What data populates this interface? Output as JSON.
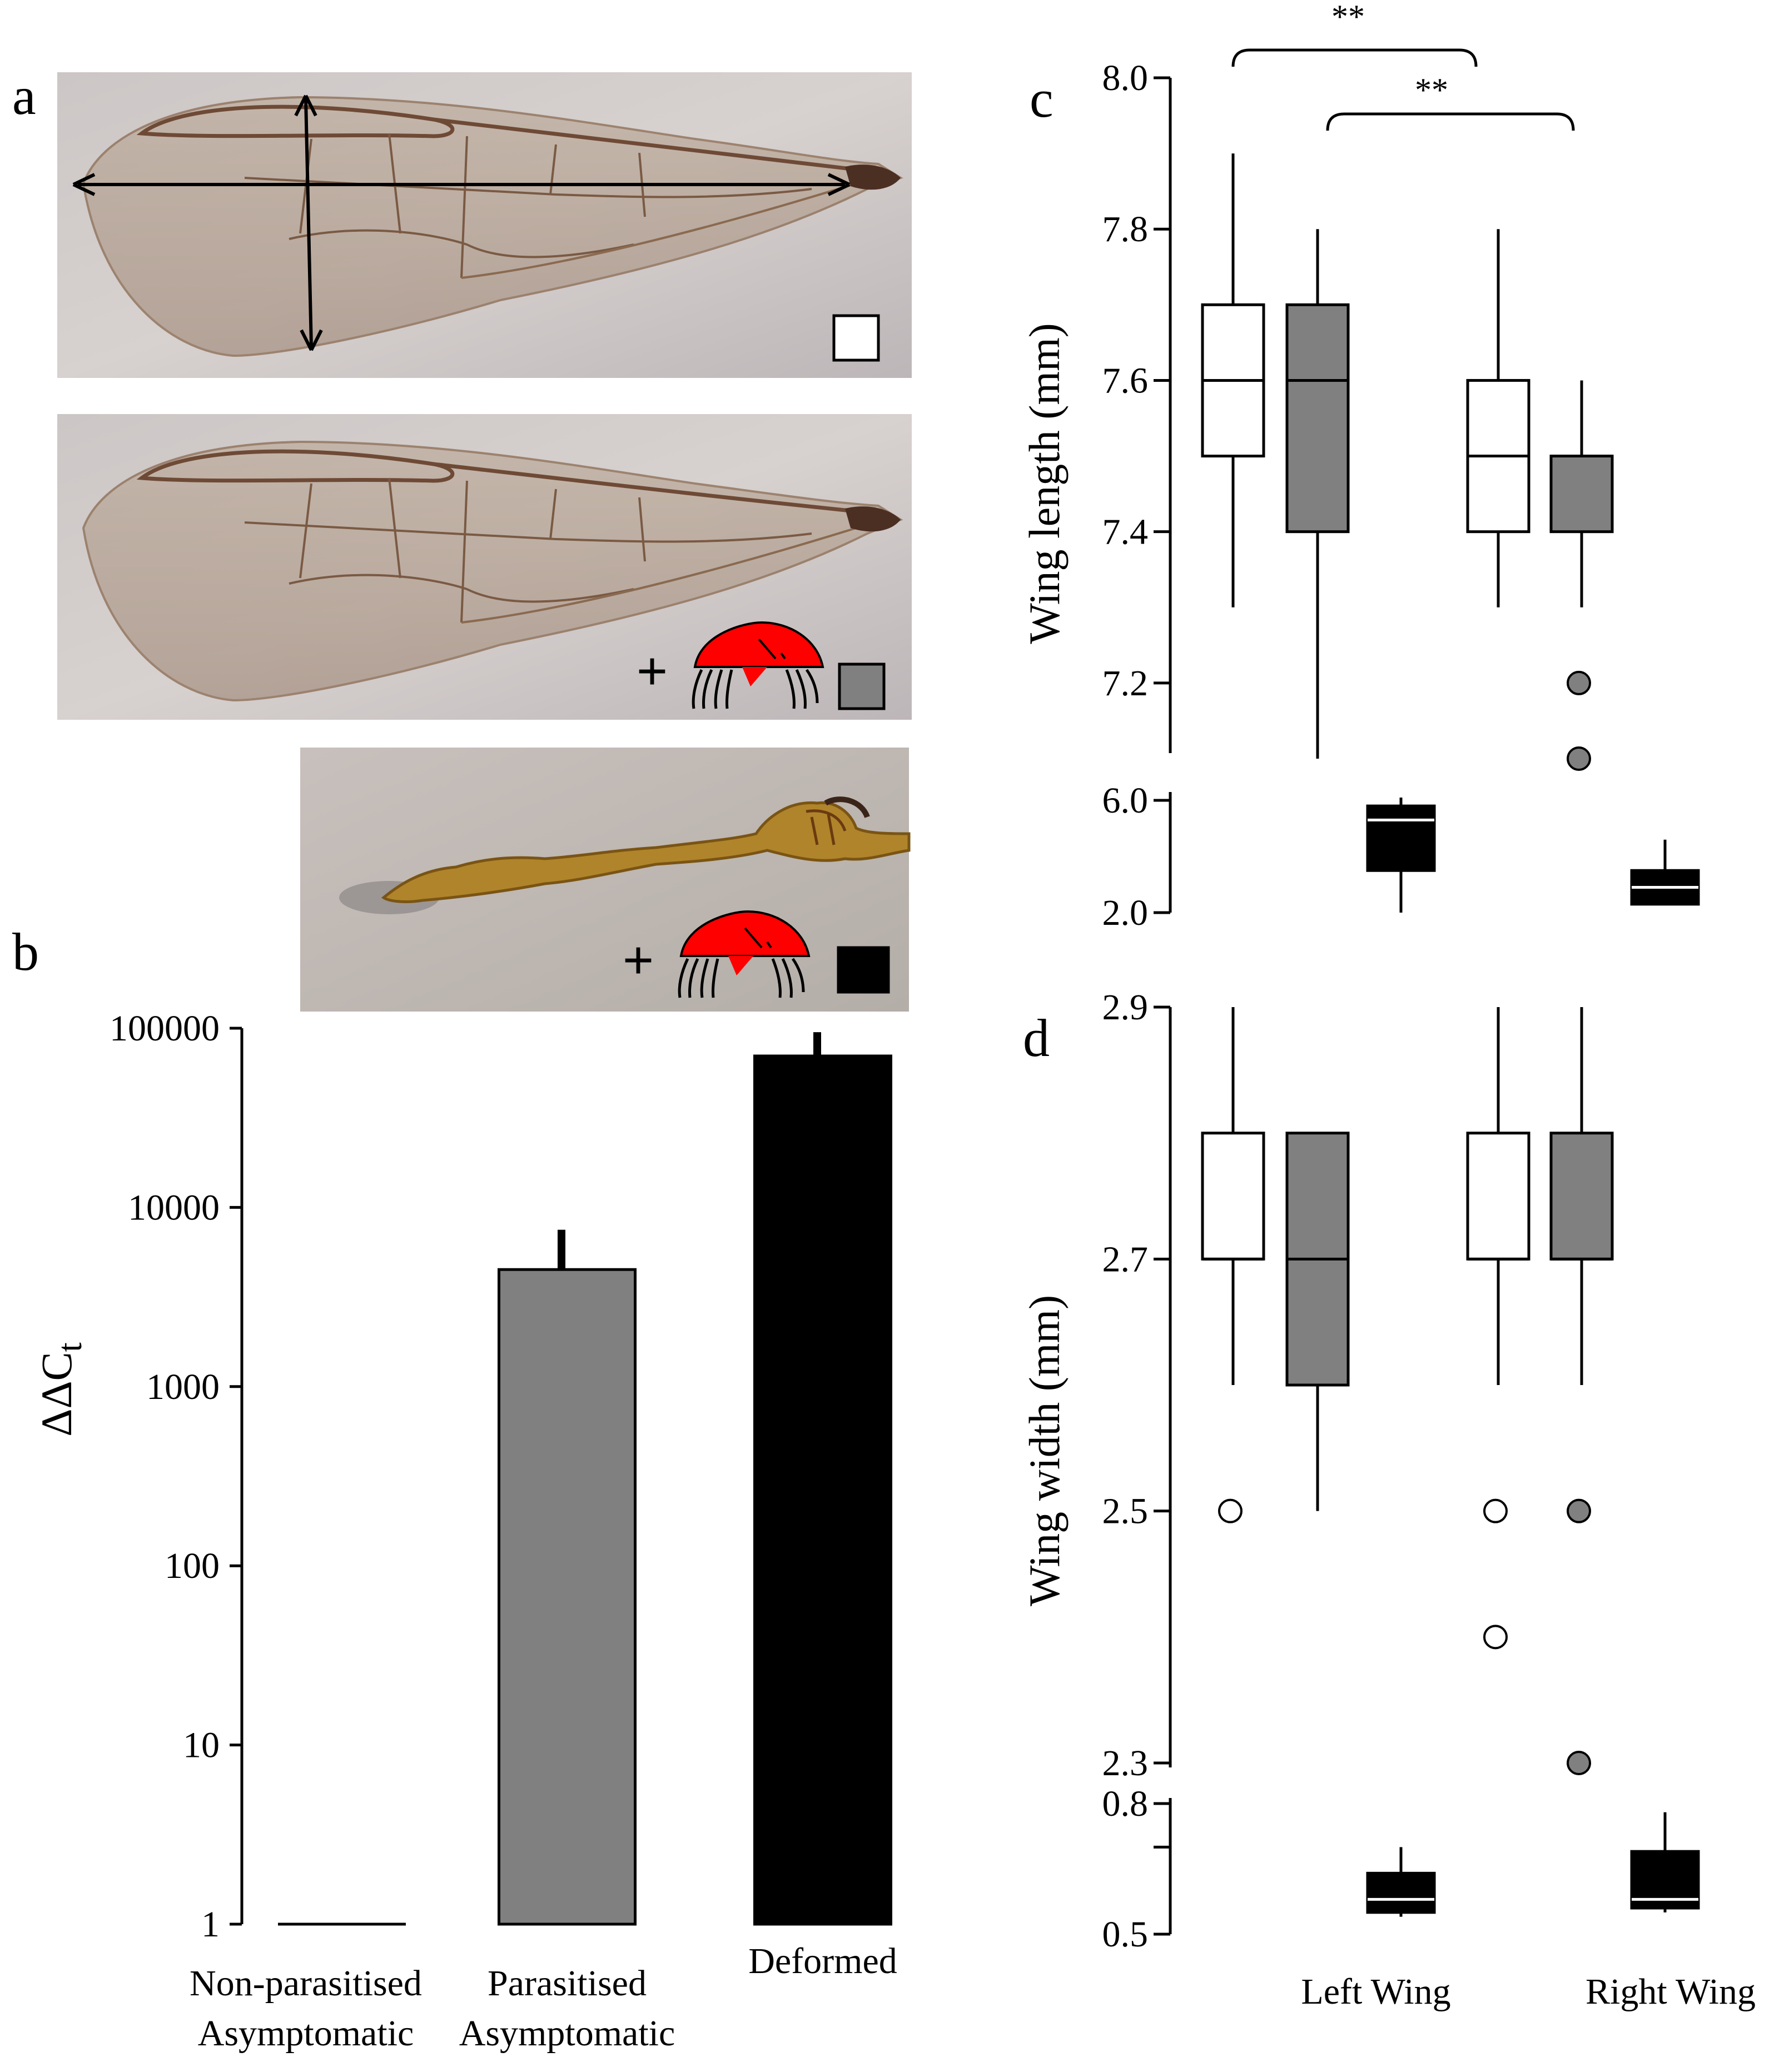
{
  "panels": {
    "a": {
      "letter": "a",
      "images": [
        {
          "description_icon": "normal-wing",
          "legend_marker_color": "#ffffff",
          "mite": false
        },
        {
          "description_icon": "parasitised-wing",
          "legend_marker_color": "#808080",
          "mite": true
        },
        {
          "description_icon": "deformed-wing",
          "legend_marker_color": "#000000",
          "mite": true
        }
      ],
      "mite_prefix": "+"
    },
    "b": {
      "letter": "b"
    },
    "c": {
      "letter": "c"
    },
    "d": {
      "letter": "d"
    }
  },
  "colors": {
    "nonparasitised": "#ffffff",
    "parasitised": "#808080",
    "deformed": "#000000",
    "mite": "#ff0000",
    "wing_bg": "#c9c0bb",
    "wing_membrane": "#b7a49a",
    "deformed_wing": "#b0842a"
  },
  "chart_data": [
    {
      "id": "b",
      "type": "bar",
      "yscale": "log",
      "ylabel_main": "ΔΔC",
      "ylabel_sub": "t",
      "ylim": [
        1,
        100000
      ],
      "yticks": [
        1,
        10,
        100,
        1000,
        10000,
        100000
      ],
      "ytick_labels": [
        "1",
        "10",
        "100",
        "1000",
        "10000",
        "100000"
      ],
      "categories": [
        [
          "Non-parasitised",
          "Asymptomatic"
        ],
        [
          "Parasitised",
          "Asymptomatic"
        ],
        [
          "Deformed"
        ]
      ],
      "values": [
        1,
        4500,
        70000
      ],
      "error_upper": [
        null,
        7500,
        95000
      ],
      "colors": [
        "#ffffff",
        "#808080",
        "#000000"
      ]
    },
    {
      "id": "c",
      "type": "box",
      "ylabel": "Wing length (mm)",
      "groups": [
        "Left Wing",
        "Right Wing"
      ],
      "upper_axis": {
        "ylim": [
          7.1,
          8.0
        ],
        "yticks": [
          7.2,
          7.4,
          7.6,
          7.8,
          8.0
        ],
        "ytick_labels": [
          "7.2",
          "7.4",
          "7.6",
          "7.8",
          "8.0"
        ]
      },
      "lower_axis": {
        "ylim": [
          2.0,
          6.0
        ],
        "yticks": [
          2.0,
          6.0
        ],
        "ytick_labels": [
          "2.0",
          "6.0"
        ]
      },
      "boxes": [
        {
          "group": "Left Wing",
          "category": "Non-parasitised",
          "color": "#ffffff",
          "axis": "upper",
          "whisker_low": 7.3,
          "q1": 7.5,
          "median": 7.6,
          "q3": 7.7,
          "whisker_high": 7.9,
          "outliers": []
        },
        {
          "group": "Left Wing",
          "category": "Parasitised",
          "color": "#808080",
          "axis": "upper",
          "whisker_low": 7.1,
          "q1": 7.4,
          "median": 7.6,
          "q3": 7.7,
          "whisker_high": 7.8,
          "outliers": []
        },
        {
          "group": "Left Wing",
          "category": "Deformed",
          "color": "#000000",
          "axis": "lower",
          "whisker_low": 2.0,
          "q1": 3.5,
          "median": 5.3,
          "q3": 5.8,
          "whisker_high": 6.1,
          "outliers": []
        },
        {
          "group": "Right Wing",
          "category": "Non-parasitised",
          "color": "#ffffff",
          "axis": "upper",
          "whisker_low": 7.3,
          "q1": 7.4,
          "median": 7.5,
          "q3": 7.6,
          "whisker_high": 7.8,
          "outliers": []
        },
        {
          "group": "Right Wing",
          "category": "Parasitised",
          "color": "#808080",
          "axis": "upper",
          "whisker_low": 7.3,
          "q1": 7.4,
          "median": 7.5,
          "q3": 7.5,
          "whisker_high": 7.6,
          "outliers": [
            7.2,
            7.1
          ]
        },
        {
          "group": "Right Wing",
          "category": "Deformed",
          "color": "#000000",
          "axis": "lower",
          "whisker_low": 2.3,
          "q1": 2.3,
          "median": 2.9,
          "q3": 3.5,
          "whisker_high": 4.6,
          "outliers": []
        }
      ],
      "significance": [
        {
          "label": "**",
          "from": "Left Wing / Non-parasitised",
          "to": "Right Wing / Non-parasitised"
        },
        {
          "label": "**",
          "from": "Left Wing / Parasitised",
          "to": "Right Wing / Parasitised"
        }
      ]
    },
    {
      "id": "d",
      "type": "box",
      "ylabel": "Wing width (mm)",
      "groups": [
        "Left Wing",
        "Right Wing"
      ],
      "upper_axis": {
        "ylim": [
          2.3,
          2.9
        ],
        "yticks": [
          2.3,
          2.5,
          2.7,
          2.9
        ],
        "ytick_labels": [
          "2.3",
          "2.5",
          "2.7",
          "2.9"
        ]
      },
      "lower_axis": {
        "ylim": [
          0.5,
          0.8
        ],
        "yticks": [
          0.5,
          0.7,
          0.8
        ],
        "ytick_labels": [
          "0.5",
          "",
          "0.8"
        ]
      },
      "boxes": [
        {
          "group": "Left Wing",
          "category": "Non-parasitised",
          "color": "#ffffff",
          "axis": "upper",
          "whisker_low": 2.6,
          "q1": 2.7,
          "median": 2.7,
          "q3": 2.8,
          "whisker_high": 2.9,
          "outliers": [
            2.5
          ]
        },
        {
          "group": "Left Wing",
          "category": "Parasitised",
          "color": "#808080",
          "axis": "upper",
          "whisker_low": 2.5,
          "q1": 2.6,
          "median": 2.7,
          "q3": 2.8,
          "whisker_high": 2.8,
          "outliers": []
        },
        {
          "group": "Left Wing",
          "category": "Deformed",
          "color": "#000000",
          "axis": "lower",
          "whisker_low": 0.54,
          "q1": 0.55,
          "median": 0.58,
          "q3": 0.64,
          "whisker_high": 0.7,
          "outliers": []
        },
        {
          "group": "Right Wing",
          "category": "Non-parasitised",
          "color": "#ffffff",
          "axis": "upper",
          "whisker_low": 2.6,
          "q1": 2.7,
          "median": 2.7,
          "q3": 2.8,
          "whisker_high": 2.9,
          "outliers": [
            2.5,
            2.4
          ]
        },
        {
          "group": "Right Wing",
          "category": "Parasitised",
          "color": "#808080",
          "axis": "upper",
          "whisker_low": 2.6,
          "q1": 2.7,
          "median": 2.7,
          "q3": 2.8,
          "whisker_high": 2.9,
          "outliers": [
            2.5,
            2.3
          ]
        },
        {
          "group": "Right Wing",
          "category": "Deformed",
          "color": "#000000",
          "axis": "lower",
          "whisker_low": 0.55,
          "q1": 0.56,
          "median": 0.58,
          "q3": 0.69,
          "whisker_high": 0.78,
          "outliers": []
        }
      ]
    }
  ]
}
